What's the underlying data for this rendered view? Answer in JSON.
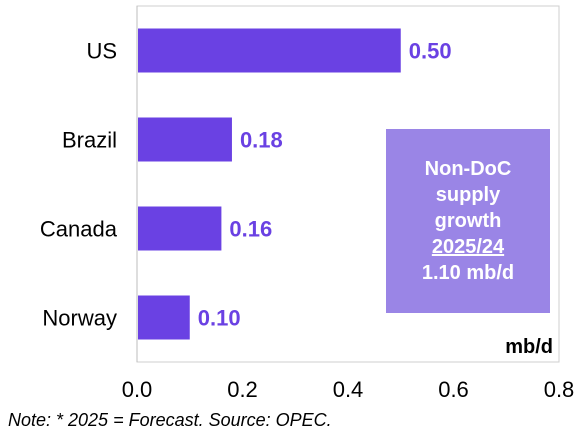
{
  "chart_data": {
    "type": "bar",
    "orientation": "horizontal",
    "categories": [
      "US",
      "Brazil",
      "Canada",
      "Norway"
    ],
    "values": [
      0.5,
      0.18,
      0.16,
      0.1
    ],
    "value_labels": [
      "0.50",
      "0.18",
      "0.16",
      "0.10"
    ],
    "xlim": [
      0.0,
      0.8
    ],
    "xticks": [
      "0.0",
      "0.2",
      "0.4",
      "0.6",
      "0.8"
    ],
    "unit": "mb/d",
    "grid": false,
    "bar_color": "#6a41e3",
    "label_color": "#6a41e3"
  },
  "callout": {
    "line1": "Non-DoC",
    "line2": "supply",
    "line3": "growth",
    "line4": "2025/24",
    "line5": "1.10 mb/d",
    "background": "#9a85e6"
  },
  "footnote": "Note: * 2025 = Forecast. Source: OPEC."
}
